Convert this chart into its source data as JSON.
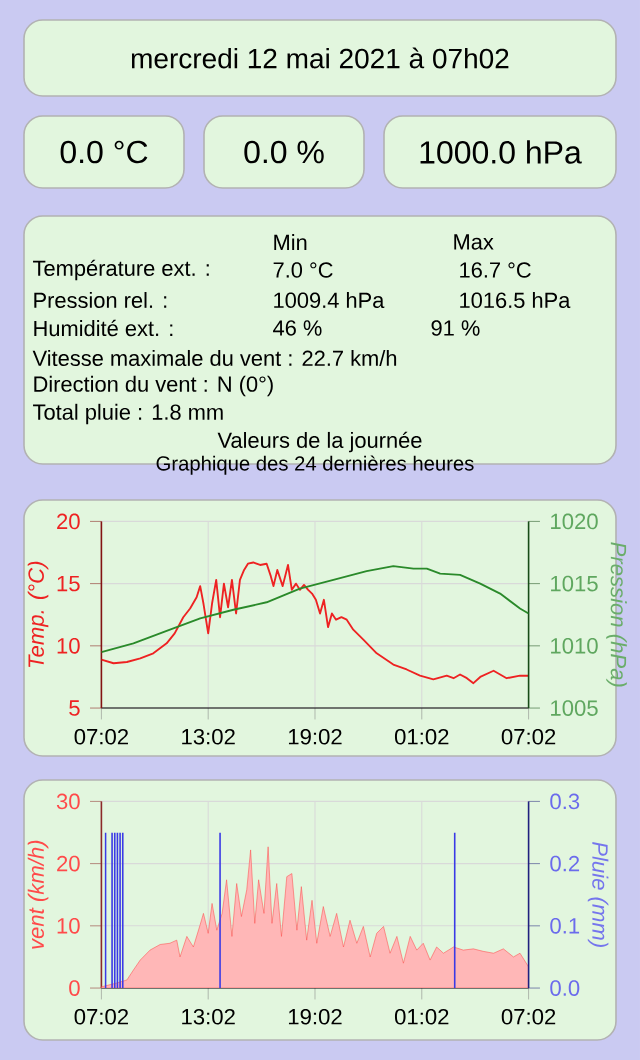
{
  "chart_data": [
    {
      "type": "other",
      "title": "mercredi 12 mai 2021 à 07h02",
      "annotations": [
        "0.0 °C",
        "0.0 %",
        "1000.0 hPa"
      ]
    },
    {
      "type": "other",
      "annotations": [
        "Min",
        "Max",
        "Température ext. :",
        "7.0 °C",
        "16.7 °C",
        "Pression rel. :",
        "1009.4 hPa",
        "1016.5 hPa",
        "Humidité ext. :",
        "46 %",
        "91 %",
        "Vitesse maximale du vent : 22.7 km/h",
        "Direction du vent : N (0°)",
        "Total pluie : 1.8 mm",
        "Valeurs de la journée"
      ]
    },
    {
      "type": "line",
      "title": "Graphique des 24 dernières heures",
      "ylabel": "Temp. (°C)",
      "y2label": "Pression (hPa)",
      "xlim": [
        "2021-05-11T07:02",
        "2021-05-12T07:02"
      ],
      "xticks": [
        {
          "value": "2021-05-11T07:02",
          "label": "07:02"
        },
        {
          "value": "2021-05-11T13:02",
          "label": "13:02"
        },
        {
          "value": "2021-05-11T19:02",
          "label": "19:02"
        },
        {
          "value": "2021-05-12T01:02",
          "label": "01:02"
        },
        {
          "value": "2021-05-12T07:02",
          "label": "07:02"
        }
      ],
      "ylim": [
        5,
        20
      ],
      "yticks": [
        5,
        10,
        15,
        20
      ],
      "y2lim": [
        1005,
        1020
      ],
      "y2ticks": [
        1005,
        1010,
        1015,
        1020
      ],
      "grid": true,
      "series": [
        {
          "color": "#ee2222",
          "x": [
            "2021-05-11T07:02",
            "2021-05-11T07:43",
            "2021-05-11T08:28",
            "2021-05-11T09:13",
            "2021-05-11T09:57",
            "2021-05-11T10:42",
            "2021-05-11T11:09",
            "2021-05-11T11:38",
            "2021-05-11T12:01",
            "2021-05-11T12:23",
            "2021-05-11T12:35",
            "2021-05-11T12:46",
            "2021-05-11T13:02",
            "2021-05-11T13:15",
            "2021-05-11T13:29",
            "2021-05-11T13:42",
            "2021-05-11T13:55",
            "2021-05-11T14:09",
            "2021-05-11T14:22",
            "2021-05-11T14:36",
            "2021-05-11T14:49",
            "2021-05-11T15:03",
            "2021-05-11T15:16",
            "2021-05-11T15:34",
            "2021-05-11T15:57",
            "2021-05-11T16:19",
            "2021-05-11T16:33",
            "2021-05-11T16:42",
            "2021-05-11T16:55",
            "2021-05-11T17:13",
            "2021-05-11T17:31",
            "2021-05-11T17:44",
            "2021-05-11T17:58",
            "2021-05-11T18:11",
            "2021-05-11T18:25",
            "2021-05-11T18:39",
            "2021-05-11T18:52",
            "2021-05-11T19:05",
            "2021-05-11T19:19",
            "2021-05-11T19:32",
            "2021-05-11T19:46",
            "2021-05-11T19:59",
            "2021-05-11T20:13",
            "2021-05-11T20:31",
            "2021-05-11T20:49",
            "2021-05-11T21:11",
            "2021-05-11T21:45",
            "2021-05-11T22:30",
            "2021-05-11T23:26",
            "2021-05-12T00:11",
            "2021-05-12T00:56",
            "2021-05-12T01:41",
            "2021-05-12T02:26",
            "2021-05-12T02:49",
            "2021-05-12T03:11",
            "2021-05-12T03:34",
            "2021-05-12T03:56",
            "2021-05-12T04:19",
            "2021-05-12T05:04",
            "2021-05-12T05:48",
            "2021-05-12T06:33",
            "2021-05-12T07:02"
          ],
          "values": [
            8.9,
            8.6,
            8.7,
            9.0,
            9.4,
            10.2,
            11.0,
            12.3,
            13.0,
            13.9,
            14.8,
            13.4,
            11.0,
            13.4,
            15.3,
            12.3,
            15.0,
            13.1,
            15.3,
            12.6,
            15.3,
            16.1,
            16.6,
            16.7,
            16.5,
            16.6,
            15.6,
            14.8,
            16.1,
            14.8,
            16.5,
            14.5,
            15.0,
            14.5,
            14.9,
            14.5,
            14.2,
            13.7,
            12.6,
            13.7,
            11.5,
            12.6,
            12.1,
            12.3,
            12.1,
            11.3,
            10.5,
            9.4,
            8.5,
            8.1,
            7.6,
            7.3,
            7.6,
            7.4,
            7.7,
            7.4,
            7.0,
            7.5,
            8.0,
            7.4,
            7.6,
            7.6
          ]
        },
        {
          "color": "#2a8a2a",
          "axis": "y2",
          "x": [
            "2021-05-11T07:02",
            "2021-05-11T08:50",
            "2021-05-11T10:42",
            "2021-05-11T12:35",
            "2021-05-11T14:27",
            "2021-05-11T16:19",
            "2021-05-11T18:11",
            "2021-05-11T20:04",
            "2021-05-11T21:56",
            "2021-05-11T23:26",
            "2021-05-12T00:34",
            "2021-05-12T01:19",
            "2021-05-12T02:04",
            "2021-05-12T03:11",
            "2021-05-12T04:19",
            "2021-05-12T05:26",
            "2021-05-12T06:33",
            "2021-05-12T07:02"
          ],
          "values": [
            1009.5,
            1010.2,
            1011.2,
            1012.2,
            1012.9,
            1013.5,
            1014.6,
            1015.3,
            1016.0,
            1016.4,
            1016.2,
            1016.2,
            1015.8,
            1015.7,
            1015.0,
            1014.2,
            1013.0,
            1012.6
          ]
        }
      ]
    },
    {
      "type": "area",
      "ylabel": "vent (km/h)",
      "y2label": "Pluie (mm)",
      "xlim": [
        "2021-05-11T07:02",
        "2021-05-12T07:02"
      ],
      "xticks": [
        {
          "value": "2021-05-11T07:02",
          "label": "07:02"
        },
        {
          "value": "2021-05-11T13:02",
          "label": "13:02"
        },
        {
          "value": "2021-05-11T19:02",
          "label": "19:02"
        },
        {
          "value": "2021-05-12T01:02",
          "label": "01:02"
        },
        {
          "value": "2021-05-12T07:02",
          "label": "07:02"
        }
      ],
      "ylim": [
        0,
        30
      ],
      "yticks": [
        0,
        10,
        20,
        30
      ],
      "y2lim": [
        0,
        0.3
      ],
      "y2ticks": [
        {
          "value": 0,
          "label": "0.0"
        },
        {
          "value": 0.1,
          "label": "0.1"
        },
        {
          "value": 0.2,
          "label": "0.2"
        },
        {
          "value": 0.3,
          "label": "0.3"
        }
      ],
      "grid": true,
      "series": [
        {
          "color": "#ff4a4a",
          "x": [
            "2021-05-11T07:02",
            "2021-05-11T07:53",
            "2021-05-11T08:28",
            "2021-05-11T08:50",
            "2021-05-11T09:13",
            "2021-05-11T09:46",
            "2021-05-11T10:20",
            "2021-05-11T10:53",
            "2021-05-11T11:16",
            "2021-05-11T11:27",
            "2021-05-11T11:50",
            "2021-05-11T12:12",
            "2021-05-11T12:35",
            "2021-05-11T12:46",
            "2021-05-11T13:02",
            "2021-05-11T13:15",
            "2021-05-11T13:31",
            "2021-05-11T13:49",
            "2021-05-11T14:04",
            "2021-05-11T14:22",
            "2021-05-11T14:38",
            "2021-05-11T14:54",
            "2021-05-11T15:12",
            "2021-05-11T15:25",
            "2021-05-11T15:39",
            "2021-05-11T15:52",
            "2021-05-11T16:10",
            "2021-05-11T16:24",
            "2021-05-11T16:37",
            "2021-05-11T16:53",
            "2021-05-11T17:09",
            "2021-05-11T17:27",
            "2021-05-11T17:44",
            "2021-05-11T18:01",
            "2021-05-11T18:16",
            "2021-05-11T18:34",
            "2021-05-11T18:52",
            "2021-05-11T19:08",
            "2021-05-11T19:30",
            "2021-05-11T19:53",
            "2021-05-11T20:15",
            "2021-05-11T20:38",
            "2021-05-11T21:00",
            "2021-05-11T21:23",
            "2021-05-11T21:45",
            "2021-05-11T22:08",
            "2021-05-11T22:30",
            "2021-05-11T22:53",
            "2021-05-11T23:15",
            "2021-05-11T23:38",
            "2021-05-12T00:00",
            "2021-05-12T00:23",
            "2021-05-12T00:45",
            "2021-05-12T01:07",
            "2021-05-12T01:30",
            "2021-05-12T01:52",
            "2021-05-12T02:15",
            "2021-05-12T02:49",
            "2021-05-12T03:22",
            "2021-05-12T03:56",
            "2021-05-12T04:29",
            "2021-05-12T05:04",
            "2021-05-12T05:37",
            "2021-05-12T06:11",
            "2021-05-12T06:33",
            "2021-05-12T07:02"
          ],
          "values": [
            0.2,
            0.8,
            1.3,
            2.9,
            4.5,
            6.1,
            7.0,
            7.2,
            7.7,
            5.0,
            8.3,
            6.6,
            10.2,
            12.0,
            8.8,
            13.6,
            9.3,
            12.0,
            17.4,
            8.3,
            16.8,
            11.5,
            15.8,
            22.2,
            10.4,
            17.4,
            12.0,
            22.7,
            10.4,
            16.8,
            8.3,
            17.9,
            18.4,
            9.3,
            16.3,
            7.7,
            14.1,
            7.2,
            13.1,
            8.3,
            12.0,
            6.6,
            10.9,
            7.2,
            9.9,
            5.0,
            8.8,
            9.9,
            5.6,
            8.3,
            4.0,
            8.3,
            6.1,
            7.2,
            4.5,
            6.6,
            5.6,
            6.6,
            6.1,
            6.3,
            5.9,
            5.6,
            6.3,
            5.0,
            5.6,
            3.4
          ]
        },
        {
          "type": "bar",
          "color": "#3a3ae6",
          "axis": "y2",
          "x": [
            "2021-05-11T07:16",
            "2021-05-11T07:38",
            "2021-05-11T07:47",
            "2021-05-11T07:56",
            "2021-05-11T08:05",
            "2021-05-11T08:14",
            "2021-05-11T13:42",
            "2021-05-12T02:53"
          ],
          "values": [
            0.25,
            0.25,
            0.25,
            0.25,
            0.25,
            0.25,
            0.25,
            0.25
          ]
        }
      ]
    }
  ]
}
